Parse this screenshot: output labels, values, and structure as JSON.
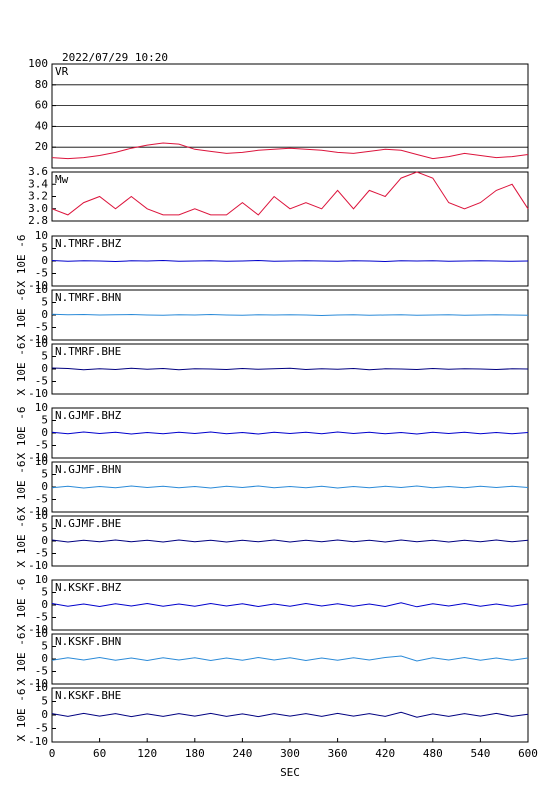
{
  "chart_data": [
    {
      "type": "line",
      "title": "2022/07/29 10:20",
      "xlim": [
        0,
        600
      ],
      "ylim": [
        0,
        100
      ],
      "yticks": [
        20,
        40,
        60,
        80,
        100
      ],
      "grid": true,
      "x": [
        0,
        20,
        40,
        60,
        80,
        100,
        120,
        140,
        160,
        180,
        200,
        220,
        240,
        260,
        280,
        300,
        320,
        340,
        360,
        380,
        400,
        420,
        440,
        460,
        480,
        500,
        520,
        540,
        560,
        580,
        600
      ],
      "series": [
        {
          "name": "VR",
          "color": "#dc143c",
          "values": [
            10,
            9,
            10,
            12,
            15,
            19,
            22,
            24,
            23,
            18,
            16,
            14,
            15,
            17,
            18,
            19,
            18,
            17,
            15,
            14,
            16,
            18,
            17,
            13,
            9,
            11,
            14,
            12,
            10,
            11,
            13
          ]
        }
      ]
    },
    {
      "type": "line",
      "xlim": [
        0,
        600
      ],
      "ylim": [
        2.8,
        3.6
      ],
      "yticks": [
        2.8,
        {
          "value": 3,
          "label": "3.0"
        },
        3.2,
        3.4,
        3.6
      ],
      "x": [
        0,
        20,
        40,
        60,
        80,
        100,
        120,
        140,
        160,
        180,
        200,
        220,
        240,
        260,
        280,
        300,
        320,
        340,
        360,
        380,
        400,
        420,
        440,
        460,
        480,
        500,
        520,
        540,
        560,
        580,
        600
      ],
      "series": [
        {
          "name": "Mw",
          "color": "#dc143c",
          "values": [
            3.0,
            2.9,
            3.1,
            3.2,
            3.0,
            3.2,
            3.0,
            2.9,
            2.9,
            3.0,
            2.9,
            2.9,
            3.1,
            2.9,
            3.2,
            3.0,
            3.1,
            3.0,
            3.3,
            3.0,
            3.3,
            3.2,
            3.5,
            3.6,
            3.5,
            3.1,
            3.0,
            3.1,
            3.3,
            3.4,
            3.0
          ]
        }
      ]
    },
    {
      "type": "line",
      "xlim": [
        0,
        600
      ],
      "ylim": [
        -10,
        10
      ],
      "yticks": [
        -10,
        -5,
        0,
        5,
        10
      ],
      "ylabel": "X 10E -6",
      "x": [
        0,
        20,
        40,
        60,
        80,
        100,
        120,
        140,
        160,
        180,
        200,
        220,
        240,
        260,
        280,
        300,
        320,
        340,
        360,
        380,
        400,
        420,
        440,
        460,
        480,
        500,
        520,
        540,
        560,
        580,
        600
      ],
      "series": [
        {
          "name": "N.TMRF.BHZ",
          "color": "#0000cc",
          "values": [
            0.2,
            -0.1,
            0.1,
            0,
            -0.2,
            0.1,
            0,
            0.2,
            -0.1,
            0,
            0.1,
            -0.1,
            0,
            0.2,
            -0.1,
            0,
            0.1,
            0,
            -0.1,
            0.1,
            0,
            -0.2,
            0.1,
            0,
            0.1,
            -0.1,
            0,
            0.1,
            0,
            -0.1,
            0
          ]
        }
      ]
    },
    {
      "type": "line",
      "xlim": [
        0,
        600
      ],
      "ylim": [
        -10,
        10
      ],
      "yticks": [
        -10,
        -5,
        0,
        5,
        10
      ],
      "ylabel": "X 10E -6",
      "x": [
        0,
        20,
        40,
        60,
        80,
        100,
        120,
        140,
        160,
        180,
        200,
        220,
        240,
        260,
        280,
        300,
        320,
        340,
        360,
        380,
        400,
        420,
        440,
        460,
        480,
        500,
        520,
        540,
        560,
        580,
        600
      ],
      "series": [
        {
          "name": "N.TMRF.BHN",
          "color": "#2a8ad8",
          "values": [
            0.3,
            0.1,
            0.2,
            0,
            0.1,
            0.2,
            0,
            -0.1,
            0.1,
            0,
            0.2,
            0,
            -0.1,
            0.1,
            0,
            0.1,
            0,
            -0.2,
            0,
            0.1,
            -0.1,
            0,
            0.1,
            -0.1,
            0,
            0.1,
            -0.1,
            0,
            0.1,
            0,
            -0.1
          ]
        }
      ]
    },
    {
      "type": "line",
      "xlim": [
        0,
        600
      ],
      "ylim": [
        -10,
        10
      ],
      "yticks": [
        -10,
        -5,
        0,
        5,
        10
      ],
      "ylabel": "X 10E -6",
      "x": [
        0,
        20,
        40,
        60,
        80,
        100,
        120,
        140,
        160,
        180,
        200,
        220,
        240,
        260,
        280,
        300,
        320,
        340,
        360,
        380,
        400,
        420,
        440,
        460,
        480,
        500,
        520,
        540,
        560,
        580,
        600
      ],
      "series": [
        {
          "name": "N.TMRF.BHE",
          "color": "#000080",
          "values": [
            0.4,
            0.2,
            -0.3,
            0.1,
            -0.2,
            0.3,
            -0.1,
            0.2,
            -0.3,
            0.1,
            0,
            -0.2,
            0.2,
            -0.1,
            0.1,
            0.3,
            -0.2,
            0.1,
            -0.1,
            0.2,
            -0.3,
            0.1,
            0,
            -0.2,
            0.2,
            -0.1,
            0.1,
            0,
            -0.2,
            0.1,
            0
          ]
        }
      ]
    },
    {
      "type": "line",
      "xlim": [
        0,
        600
      ],
      "ylim": [
        -10,
        10
      ],
      "yticks": [
        -10,
        -5,
        0,
        5,
        10
      ],
      "ylabel": "X 10E -6",
      "x": [
        0,
        20,
        40,
        60,
        80,
        100,
        120,
        140,
        160,
        180,
        200,
        220,
        240,
        260,
        280,
        300,
        320,
        340,
        360,
        380,
        400,
        420,
        440,
        460,
        480,
        500,
        520,
        540,
        560,
        580,
        600
      ],
      "series": [
        {
          "name": "N.GJMF.BHZ",
          "color": "#0000cc",
          "values": [
            0.3,
            -0.3,
            0.4,
            -0.2,
            0.3,
            -0.4,
            0.2,
            -0.3,
            0.3,
            -0.2,
            0.4,
            -0.3,
            0.2,
            -0.4,
            0.3,
            -0.2,
            0.3,
            -0.3,
            0.4,
            -0.2,
            0.3,
            -0.3,
            0.2,
            -0.4,
            0.3,
            -0.2,
            0.3,
            -0.3,
            0.2,
            -0.3,
            0.2
          ]
        }
      ]
    },
    {
      "type": "line",
      "xlim": [
        0,
        600
      ],
      "ylim": [
        -10,
        10
      ],
      "yticks": [
        -10,
        -5,
        0,
        5,
        10
      ],
      "ylabel": "X 10E -6",
      "x": [
        0,
        20,
        40,
        60,
        80,
        100,
        120,
        140,
        160,
        180,
        200,
        220,
        240,
        260,
        280,
        300,
        320,
        340,
        360,
        380,
        400,
        420,
        440,
        460,
        480,
        500,
        520,
        540,
        560,
        580,
        600
      ],
      "series": [
        {
          "name": "N.GJMF.BHN",
          "color": "#2a8ad8",
          "values": [
            -0.3,
            0.3,
            -0.4,
            0.2,
            -0.3,
            0.4,
            -0.2,
            0.3,
            -0.3,
            0.2,
            -0.4,
            0.3,
            -0.2,
            0.4,
            -0.3,
            0.2,
            -0.3,
            0.3,
            -0.4,
            0.2,
            -0.3,
            0.3,
            -0.2,
            0.4,
            -0.3,
            0.2,
            -0.3,
            0.3,
            -0.2,
            0.3,
            -0.2
          ]
        }
      ]
    },
    {
      "type": "line",
      "xlim": [
        0,
        600
      ],
      "ylim": [
        -10,
        10
      ],
      "yticks": [
        -10,
        -5,
        0,
        5,
        10
      ],
      "ylabel": "X 10E -6",
      "x": [
        0,
        20,
        40,
        60,
        80,
        100,
        120,
        140,
        160,
        180,
        200,
        220,
        240,
        260,
        280,
        300,
        320,
        340,
        360,
        380,
        400,
        420,
        440,
        460,
        480,
        500,
        520,
        540,
        560,
        580,
        600
      ],
      "series": [
        {
          "name": "N.GJMF.BHE",
          "color": "#000080",
          "values": [
            0.4,
            -0.4,
            0.3,
            -0.3,
            0.4,
            -0.3,
            0.3,
            -0.4,
            0.4,
            -0.3,
            0.3,
            -0.4,
            0.3,
            -0.3,
            0.4,
            -0.4,
            0.3,
            -0.3,
            0.4,
            -0.3,
            0.3,
            -0.4,
            0.4,
            -0.3,
            0.3,
            -0.4,
            0.3,
            -0.3,
            0.4,
            -0.3,
            0.3
          ]
        }
      ]
    },
    {
      "type": "line",
      "xlim": [
        0,
        600
      ],
      "ylim": [
        -10,
        10
      ],
      "yticks": [
        -10,
        -5,
        0,
        5,
        10
      ],
      "ylabel": "X 10E -6",
      "x": [
        0,
        20,
        40,
        60,
        80,
        100,
        120,
        140,
        160,
        180,
        200,
        220,
        240,
        260,
        280,
        300,
        320,
        340,
        360,
        380,
        400,
        420,
        440,
        460,
        480,
        500,
        520,
        540,
        560,
        580,
        600
      ],
      "series": [
        {
          "name": "N.KSKF.BHZ",
          "color": "#0000cc",
          "values": [
            0.6,
            -0.5,
            0.4,
            -0.6,
            0.5,
            -0.4,
            0.6,
            -0.5,
            0.4,
            -0.5,
            0.6,
            -0.4,
            0.5,
            -0.6,
            0.4,
            -0.5,
            0.6,
            -0.4,
            0.5,
            -0.5,
            0.4,
            -0.6,
            0.9,
            -0.7,
            0.5,
            -0.4,
            0.6,
            -0.5,
            0.4,
            -0.5,
            0.4
          ]
        }
      ]
    },
    {
      "type": "line",
      "xlim": [
        0,
        600
      ],
      "ylim": [
        -10,
        10
      ],
      "yticks": [
        -10,
        -5,
        0,
        5,
        10
      ],
      "ylabel": "X 10E -6",
      "x": [
        0,
        20,
        40,
        60,
        80,
        100,
        120,
        140,
        160,
        180,
        200,
        220,
        240,
        260,
        280,
        300,
        320,
        340,
        360,
        380,
        400,
        420,
        440,
        460,
        480,
        500,
        520,
        540,
        560,
        580,
        600
      ],
      "series": [
        {
          "name": "N.KSKF.BHN",
          "color": "#2a8ad8",
          "values": [
            -0.5,
            0.5,
            -0.4,
            0.6,
            -0.5,
            0.4,
            -0.6,
            0.5,
            -0.4,
            0.5,
            -0.6,
            0.4,
            -0.5,
            0.6,
            -0.4,
            0.5,
            -0.6,
            0.4,
            -0.5,
            0.5,
            -0.4,
            0.6,
            1.2,
            -0.8,
            0.5,
            -0.4,
            0.6,
            -0.5,
            0.4,
            -0.5,
            0.4
          ]
        }
      ]
    },
    {
      "type": "line",
      "xlim": [
        0,
        600
      ],
      "ylim": [
        -10,
        10
      ],
      "yticks": [
        -10,
        -5,
        0,
        5,
        10
      ],
      "ylabel": "X 10E -6",
      "xlabel": "SEC",
      "xticks": [
        0,
        60,
        120,
        180,
        240,
        300,
        360,
        420,
        480,
        540,
        600
      ],
      "x": [
        0,
        20,
        40,
        60,
        80,
        100,
        120,
        140,
        160,
        180,
        200,
        220,
        240,
        260,
        280,
        300,
        320,
        340,
        360,
        380,
        400,
        420,
        440,
        460,
        480,
        500,
        520,
        540,
        560,
        580,
        600
      ],
      "series": [
        {
          "name": "N.KSKF.BHE",
          "color": "#000080",
          "values": [
            0.5,
            -0.5,
            0.6,
            -0.4,
            0.5,
            -0.6,
            0.4,
            -0.5,
            0.5,
            -0.4,
            0.6,
            -0.5,
            0.4,
            -0.6,
            0.5,
            -0.4,
            0.5,
            -0.5,
            0.6,
            -0.4,
            0.5,
            -0.5,
            1.0,
            -0.8,
            0.4,
            -0.5,
            0.5,
            -0.4,
            0.6,
            -0.5,
            0.3
          ]
        }
      ]
    }
  ]
}
